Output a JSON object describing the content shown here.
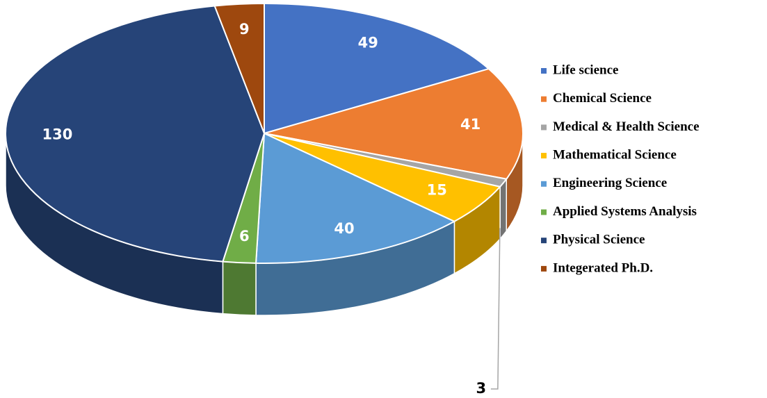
{
  "chart_data": {
    "type": "pie",
    "categories": [
      "Life science",
      "Chemical Science",
      "Medical & Health Science",
      "Mathematical Science",
      "Engineering Science",
      "Applied Systems Analysis",
      "Physical Science",
      "Integerated Ph.D."
    ],
    "values": [
      49,
      41,
      3,
      15,
      40,
      6,
      130,
      9
    ],
    "colors": [
      "#4472c4",
      "#ed7d31",
      "#a5a5a5",
      "#ffc000",
      "#5b9bd5",
      "#70ad47",
      "#264478",
      "#9e480e"
    ],
    "legend": "right"
  }
}
